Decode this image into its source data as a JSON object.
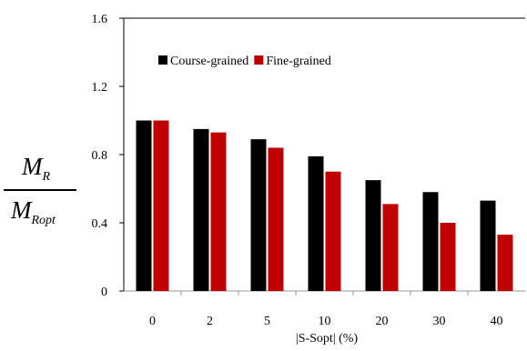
{
  "chart_data": {
    "type": "bar",
    "categories": [
      "0",
      "2",
      "5",
      "10",
      "20",
      "30",
      "40"
    ],
    "series": [
      {
        "name": "Course-grained",
        "color": "#000000",
        "values": [
          1.0,
          0.95,
          0.89,
          0.79,
          0.65,
          0.58,
          0.53
        ]
      },
      {
        "name": "Fine-grained",
        "color": "#c00000",
        "values": [
          1.0,
          0.93,
          0.84,
          0.7,
          0.51,
          0.4,
          0.33
        ]
      }
    ],
    "xlabel": "|S-Sopt| (%)",
    "ylabel": {
      "num_main": "M",
      "num_sub": "R",
      "den_main": "M",
      "den_sub": "Ropt"
    },
    "ylim": [
      0,
      1.6
    ],
    "yticks": [
      "0",
      "0.4",
      "0.8",
      "1.2",
      "1.6"
    ],
    "legend_position": "top-left",
    "grid": false
  }
}
